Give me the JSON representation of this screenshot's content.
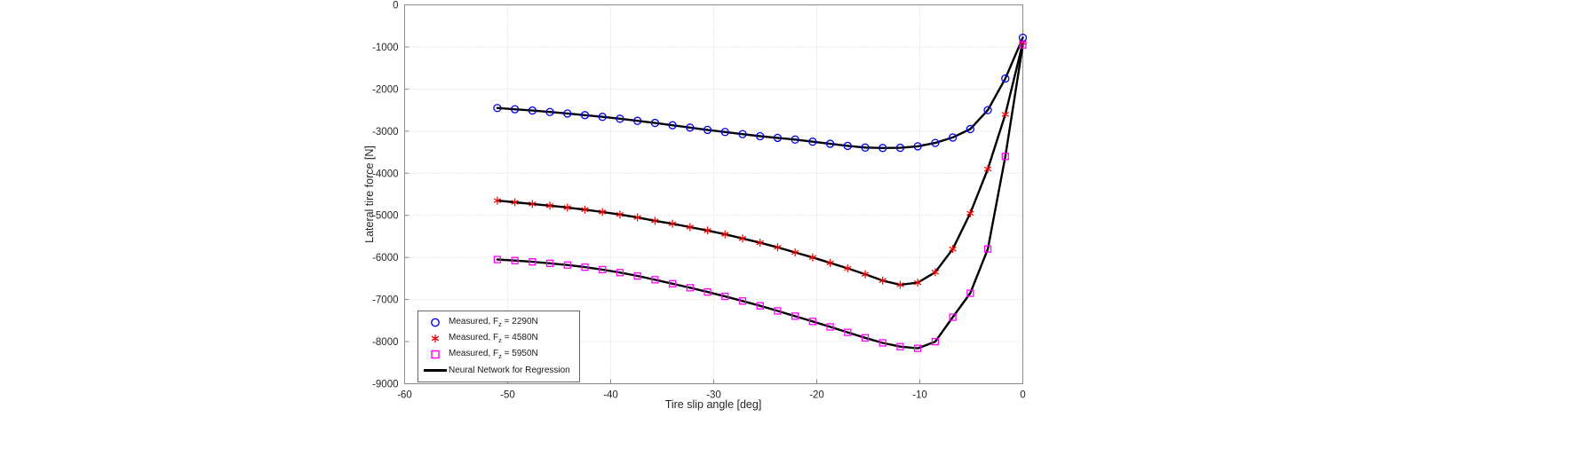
{
  "chart_data": {
    "type": "line",
    "title": "",
    "xlabel": "Tire slip angle [deg]",
    "ylabel": "Lateral tire force [N]",
    "xlim": [
      -60,
      0
    ],
    "ylim": [
      -9000,
      0
    ],
    "x_ticks": [
      -60,
      -50,
      -40,
      -30,
      -20,
      -10,
      0
    ],
    "y_ticks": [
      0,
      -1000,
      -2000,
      -3000,
      -4000,
      -5000,
      -6000,
      -7000,
      -8000,
      -9000
    ],
    "grid": true,
    "legend_position": "bottom-left-inside",
    "x": [
      -51,
      -49.3,
      -47.6,
      -45.9,
      -44.2,
      -42.5,
      -40.8,
      -39.1,
      -37.4,
      -35.7,
      -34,
      -32.3,
      -30.6,
      -28.9,
      -27.2,
      -25.5,
      -23.8,
      -22.1,
      -20.4,
      -18.7,
      -17,
      -15.3,
      -13.6,
      -11.9,
      -10.2,
      -8.5,
      -6.8,
      -5.1,
      -3.4,
      -1.7,
      0
    ],
    "series": [
      {
        "name": "Measured, Fz = 2290N",
        "marker": "circle",
        "color": "#0000ee",
        "values": [
          -2450,
          -2480,
          -2510,
          -2545,
          -2580,
          -2620,
          -2660,
          -2705,
          -2755,
          -2805,
          -2860,
          -2915,
          -2970,
          -3020,
          -3070,
          -3120,
          -3160,
          -3200,
          -3250,
          -3300,
          -3350,
          -3390,
          -3400,
          -3395,
          -3360,
          -3280,
          -3150,
          -2950,
          -2500,
          -1750,
          -780
        ]
      },
      {
        "name": "Measured, Fz = 4580N",
        "marker": "asterisk",
        "color": "#ee0000",
        "values": [
          -4650,
          -4690,
          -4730,
          -4770,
          -4815,
          -4865,
          -4920,
          -4980,
          -5050,
          -5130,
          -5200,
          -5280,
          -5360,
          -5450,
          -5550,
          -5650,
          -5760,
          -5880,
          -6000,
          -6130,
          -6260,
          -6400,
          -6550,
          -6650,
          -6600,
          -6350,
          -5800,
          -4950,
          -3900,
          -2600,
          -900
        ]
      },
      {
        "name": "Measured, Fz = 5950N",
        "marker": "square",
        "color": "#ff00ff",
        "values": [
          -6050,
          -6075,
          -6105,
          -6140,
          -6180,
          -6230,
          -6290,
          -6360,
          -6440,
          -6530,
          -6625,
          -6720,
          -6820,
          -6925,
          -7035,
          -7150,
          -7270,
          -7395,
          -7520,
          -7650,
          -7780,
          -7910,
          -8030,
          -8120,
          -8160,
          -8000,
          -7420,
          -6850,
          -5800,
          -3600,
          -950
        ]
      },
      {
        "name": "Neural Network for Regression",
        "type": "fit_line",
        "color": "#000000",
        "line_width": 2.4
      }
    ],
    "legend": {
      "items": [
        {
          "pre": "Measured, F",
          "sub": "z",
          "post": " = 2290N",
          "marker": "circle",
          "color": "#0000ee"
        },
        {
          "pre": "Measured, F",
          "sub": "z",
          "post": " = 4580N",
          "marker": "asterisk",
          "color": "#ee0000"
        },
        {
          "pre": "Measured, F",
          "sub": "z",
          "post": " = 5950N",
          "marker": "square",
          "color": "#ff00ff"
        },
        {
          "label": "Neural Network for Regression",
          "marker": "line",
          "color": "#000000"
        }
      ]
    }
  }
}
